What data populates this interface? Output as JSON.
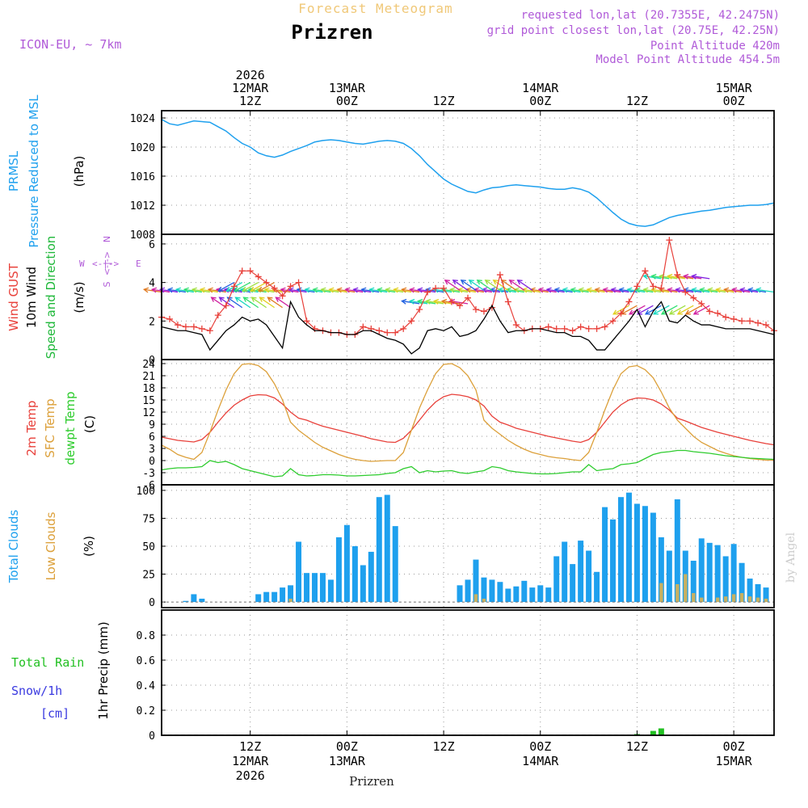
{
  "header": {
    "title": "Forecast Meteogram",
    "location": "Prizren",
    "model": "ICON-EU,  ~ 7km",
    "requested": "requested lon,lat (20.7355E, 42.2475N)",
    "gridpoint": "grid point closest lon,lat (20.75E, 42.25N)",
    "point_altitude": "Point Altitude 420m",
    "model_altitude": "Model Point Altitude 454.5m",
    "credit": "by Angel",
    "footer_location": "Prizren"
  },
  "colors": {
    "pressure": "#1ea0ee",
    "gust": "#e8403a",
    "wind": "#000000",
    "wind_dir_label": "#1fb83a",
    "t2m": "#e8403a",
    "sfc": "#dca03a",
    "dewpt": "#2ecc2e",
    "total_clouds": "#1ea0ee",
    "low_clouds": "#c8b060",
    "rain": "#22c022",
    "snow": "#3a3ae0",
    "purple": "#b05ad8",
    "title_gold": "#f0c878"
  },
  "time_axis": {
    "top": [
      {
        "t": 15,
        "lines": [
          "2026",
          "12MAR",
          "12Z"
        ]
      },
      {
        "t": 27,
        "lines": [
          "13MAR",
          "00Z"
        ]
      },
      {
        "t": 39,
        "lines": [
          "12Z"
        ]
      },
      {
        "t": 51,
        "lines": [
          "14MAR",
          "00Z"
        ]
      },
      {
        "t": 63,
        "lines": [
          "12Z"
        ]
      },
      {
        "t": 75,
        "lines": [
          "15MAR",
          "00Z"
        ]
      }
    ],
    "bottom": [
      {
        "t": 15,
        "lines": [
          "12Z",
          "12MAR",
          "2026"
        ]
      },
      {
        "t": 27,
        "lines": [
          "00Z",
          "13MAR"
        ]
      },
      {
        "t": 39,
        "lines": [
          "12Z"
        ]
      },
      {
        "t": 51,
        "lines": [
          "00Z",
          "14MAR"
        ]
      },
      {
        "t": 63,
        "lines": [
          "12Z"
        ]
      },
      {
        "t": 75,
        "lines": [
          "00Z",
          "15MAR"
        ]
      }
    ],
    "t_start": 4,
    "t_end": 80
  },
  "chart_data": [
    {
      "type": "line",
      "panel": "pressure",
      "ylabel_lines": [
        "PRMSL",
        "Pressure Reduced to MSL"
      ],
      "unit": "(hPa)",
      "ylim": [
        1008,
        1025
      ],
      "yticks": [
        1008,
        1012,
        1016,
        1020,
        1024
      ],
      "x": [
        4,
        5,
        6,
        7,
        8,
        9,
        10,
        11,
        12,
        13,
        14,
        15,
        16,
        17,
        18,
        19,
        20,
        21,
        22,
        23,
        24,
        25,
        26,
        27,
        28,
        29,
        30,
        31,
        32,
        33,
        34,
        35,
        36,
        37,
        38,
        39,
        40,
        41,
        42,
        43,
        44,
        45,
        46,
        47,
        48,
        49,
        50,
        51,
        52,
        53,
        54,
        55,
        56,
        57,
        58,
        59,
        60,
        61,
        62,
        63,
        64,
        65,
        66,
        67,
        68,
        69,
        70,
        71,
        72,
        73,
        74,
        75,
        76,
        77,
        78,
        79,
        80
      ],
      "values": [
        1023.8,
        1023.2,
        1023.0,
        1023.3,
        1023.6,
        1023.5,
        1023.4,
        1022.8,
        1022.2,
        1021.3,
        1020.5,
        1020.0,
        1019.2,
        1018.8,
        1018.6,
        1018.9,
        1019.4,
        1019.8,
        1020.2,
        1020.7,
        1020.9,
        1021.0,
        1020.9,
        1020.7,
        1020.5,
        1020.4,
        1020.6,
        1020.8,
        1020.9,
        1020.8,
        1020.5,
        1019.8,
        1018.8,
        1017.6,
        1016.6,
        1015.6,
        1014.9,
        1014.4,
        1013.9,
        1013.7,
        1014.1,
        1014.4,
        1014.5,
        1014.7,
        1014.8,
        1014.7,
        1014.6,
        1014.5,
        1014.3,
        1014.2,
        1014.2,
        1014.4,
        1014.2,
        1013.8,
        1013.0,
        1012.0,
        1011.0,
        1010.1,
        1009.5,
        1009.2,
        1009.1,
        1009.3,
        1009.8,
        1010.3,
        1010.6,
        1010.8,
        1011.0,
        1011.2,
        1011.3,
        1011.5,
        1011.7,
        1011.8,
        1011.9,
        1012.0,
        1012.0,
        1012.1,
        1012.3
      ]
    },
    {
      "type": "line",
      "panel": "wind",
      "ylabel_lines": [
        "Wind GUST",
        "10m Wind",
        "Speed and Direction"
      ],
      "unit": "(m/s)",
      "compass": {
        "n": "N",
        "s": "S",
        "w": "W",
        "e": "E",
        "arrow": "<-|->"
      },
      "ylim": [
        0,
        6.5
      ],
      "yticks": [
        0,
        2,
        4,
        6
      ],
      "x": [
        4,
        5,
        6,
        7,
        8,
        9,
        10,
        11,
        12,
        13,
        14,
        15,
        16,
        17,
        18,
        19,
        20,
        21,
        22,
        23,
        24,
        25,
        26,
        27,
        28,
        29,
        30,
        31,
        32,
        33,
        34,
        35,
        36,
        37,
        38,
        39,
        40,
        41,
        42,
        43,
        44,
        45,
        46,
        47,
        48,
        49,
        50,
        51,
        52,
        53,
        54,
        55,
        56,
        57,
        58,
        59,
        60,
        61,
        62,
        63,
        64,
        65,
        66,
        67,
        68,
        69,
        70,
        71,
        72,
        73,
        74,
        75,
        76,
        77,
        78,
        79,
        80
      ],
      "series": [
        {
          "name": "Wind GUST",
          "values": [
            2.2,
            2.1,
            1.8,
            1.7,
            1.7,
            1.6,
            1.5,
            2.3,
            2.8,
            3.8,
            4.6,
            4.6,
            4.3,
            4.0,
            3.7,
            3.3,
            3.8,
            4.0,
            2.0,
            1.6,
            1.5,
            1.4,
            1.4,
            1.3,
            1.3,
            1.7,
            1.6,
            1.5,
            1.4,
            1.4,
            1.6,
            2.0,
            2.6,
            3.5,
            3.7,
            3.7,
            3.0,
            2.8,
            3.2,
            2.6,
            2.5,
            2.7,
            4.4,
            3.0,
            1.8,
            1.5,
            1.6,
            1.6,
            1.7,
            1.6,
            1.6,
            1.5,
            1.7,
            1.6,
            1.6,
            1.7,
            2.0,
            2.4,
            3.0,
            3.8,
            4.6,
            3.8,
            3.7,
            6.2,
            4.4,
            3.5,
            3.2,
            2.9,
            2.5,
            2.4,
            2.2,
            2.1,
            2.0,
            2.0,
            1.9,
            1.8,
            1.5
          ]
        },
        {
          "name": "10m Wind",
          "values": [
            1.7,
            1.6,
            1.5,
            1.5,
            1.4,
            1.3,
            0.5,
            1.0,
            1.5,
            1.8,
            2.2,
            2.0,
            2.1,
            1.8,
            1.2,
            0.6,
            3.0,
            2.2,
            1.8,
            1.5,
            1.5,
            1.4,
            1.4,
            1.3,
            1.3,
            1.5,
            1.5,
            1.3,
            1.1,
            1.0,
            0.8,
            0.3,
            0.6,
            1.5,
            1.6,
            1.5,
            1.7,
            1.2,
            1.3,
            1.5,
            2.1,
            2.8,
            2.0,
            1.4,
            1.5,
            1.5,
            1.6,
            1.6,
            1.5,
            1.4,
            1.4,
            1.2,
            1.2,
            1.0,
            0.5,
            0.5,
            1.0,
            1.5,
            2.0,
            2.6,
            1.7,
            2.5,
            3.0,
            2.0,
            1.9,
            2.3,
            2.0,
            1.8,
            1.8,
            1.7,
            1.6,
            1.6,
            1.6,
            1.6,
            1.5,
            1.4,
            1.3
          ]
        }
      ],
      "arrow_rows": [
        {
          "level": 3.5,
          "start": 4,
          "end": 80,
          "step": 1
        },
        {
          "level": 2.7,
          "start": 12,
          "end": 20,
          "step": 1
        },
        {
          "level": 4.0,
          "start": 13,
          "end": 18,
          "step": 1
        },
        {
          "level": 2.9,
          "start": 36,
          "end": 42,
          "step": 1
        },
        {
          "level": 3.6,
          "start": 41,
          "end": 50,
          "step": 1
        },
        {
          "level": 2.8,
          "start": 62,
          "end": 72,
          "step": 1
        },
        {
          "level": 4.2,
          "start": 66,
          "end": 72,
          "step": 1
        }
      ]
    },
    {
      "type": "line",
      "panel": "temperature",
      "ylabel_lines": [
        "2m Temp",
        "SFC Temp",
        "dewpt Temp"
      ],
      "unit": "(C)",
      "ylim": [
        -6,
        25
      ],
      "yticks": [
        -6,
        -3,
        0,
        3,
        6,
        9,
        12,
        15,
        18,
        21,
        24
      ],
      "x": [
        4,
        5,
        6,
        7,
        8,
        9,
        10,
        11,
        12,
        13,
        14,
        15,
        16,
        17,
        18,
        19,
        20,
        21,
        22,
        23,
        24,
        25,
        26,
        27,
        28,
        29,
        30,
        31,
        32,
        33,
        34,
        35,
        36,
        37,
        38,
        39,
        40,
        41,
        42,
        43,
        44,
        45,
        46,
        47,
        48,
        49,
        50,
        51,
        52,
        53,
        54,
        55,
        56,
        57,
        58,
        59,
        60,
        61,
        62,
        63,
        64,
        65,
        66,
        67,
        68,
        69,
        70,
        71,
        72,
        73,
        74,
        75,
        76,
        77,
        78,
        79,
        80
      ],
      "series": [
        {
          "name": "2m Temp",
          "values": [
            5.8,
            5.4,
            5.0,
            4.8,
            4.6,
            5.2,
            7.0,
            9.5,
            11.8,
            13.7,
            15.0,
            16.0,
            16.3,
            16.2,
            15.5,
            14.0,
            12.0,
            10.5,
            10.0,
            9.2,
            8.5,
            8.0,
            7.5,
            7.0,
            6.5,
            6.0,
            5.4,
            5.0,
            4.6,
            4.5,
            5.5,
            7.5,
            10.0,
            12.5,
            14.5,
            15.8,
            16.4,
            16.2,
            15.8,
            15.0,
            13.5,
            11.0,
            9.5,
            8.8,
            8.0,
            7.5,
            7.0,
            6.5,
            6.0,
            5.6,
            5.2,
            4.8,
            4.5,
            5.2,
            7.0,
            9.5,
            12.0,
            13.8,
            15.0,
            15.5,
            15.4,
            15.0,
            14.0,
            12.5,
            10.5,
            9.8,
            9.0,
            8.2,
            7.6,
            7.0,
            6.5,
            6.0,
            5.5,
            5.0,
            4.6,
            4.2,
            3.9
          ]
        },
        {
          "name": "SFC Temp",
          "values": [
            3.8,
            2.8,
            1.5,
            0.8,
            0.3,
            2.0,
            7.0,
            12.5,
            17.5,
            21.5,
            23.8,
            24.0,
            23.5,
            22.0,
            19.0,
            15.0,
            9.5,
            7.5,
            6.0,
            4.5,
            3.3,
            2.4,
            1.5,
            0.8,
            0.3,
            0.0,
            -0.2,
            -0.1,
            0.0,
            0.0,
            2.0,
            7.5,
            13.0,
            17.5,
            21.5,
            23.8,
            24.0,
            23.0,
            21.0,
            17.5,
            10.0,
            8.0,
            6.5,
            5.0,
            3.8,
            2.8,
            2.0,
            1.5,
            1.0,
            0.7,
            0.5,
            0.2,
            0.0,
            2.0,
            7.0,
            12.5,
            17.5,
            21.5,
            23.2,
            23.5,
            22.5,
            20.5,
            17.0,
            13.0,
            10.0,
            8.0,
            6.0,
            4.5,
            3.5,
            2.5,
            1.8,
            1.2,
            0.8,
            0.5,
            0.3,
            0.1,
            0.1
          ]
        },
        {
          "name": "dewpt Temp",
          "values": [
            -2.3,
            -2.0,
            -1.8,
            -1.8,
            -1.7,
            -1.5,
            0.0,
            -0.5,
            -0.2,
            -1.0,
            -2.0,
            -2.5,
            -3.0,
            -3.5,
            -4.0,
            -3.8,
            -2.0,
            -3.5,
            -3.8,
            -3.7,
            -3.5,
            -3.5,
            -3.6,
            -3.8,
            -3.8,
            -3.7,
            -3.6,
            -3.5,
            -3.2,
            -3.0,
            -2.0,
            -1.5,
            -3.0,
            -2.5,
            -2.8,
            -2.6,
            -2.5,
            -3.0,
            -3.2,
            -2.8,
            -2.5,
            -1.5,
            -1.8,
            -2.5,
            -2.8,
            -3.0,
            -3.2,
            -3.3,
            -3.3,
            -3.2,
            -3.0,
            -2.8,
            -2.8,
            -1.0,
            -2.5,
            -2.2,
            -2.0,
            -1.0,
            -0.8,
            -0.5,
            0.5,
            1.5,
            2.0,
            2.2,
            2.5,
            2.5,
            2.2,
            2.0,
            1.8,
            1.5,
            1.2,
            1.0,
            0.8,
            0.6,
            0.5,
            0.4,
            0.3
          ]
        }
      ]
    },
    {
      "type": "bar",
      "panel": "clouds",
      "ylabel_lines": [
        "Total Clouds",
        "Low Clouds"
      ],
      "unit": "(%)",
      "ylim": [
        -5,
        105
      ],
      "yticks": [
        0,
        25,
        50,
        75,
        100
      ],
      "x": [
        5,
        6,
        7,
        8,
        9,
        10,
        11,
        12,
        13,
        14,
        15,
        16,
        17,
        18,
        19,
        20,
        21,
        22,
        23,
        24,
        25,
        26,
        27,
        28,
        29,
        30,
        31,
        32,
        33,
        34,
        35,
        36,
        37,
        38,
        39,
        40,
        41,
        42,
        43,
        44,
        45,
        46,
        47,
        48,
        49,
        50,
        51,
        52,
        53,
        54,
        55,
        56,
        57,
        58,
        59,
        60,
        61,
        62,
        63,
        64,
        65,
        66,
        67,
        68,
        69,
        70,
        71,
        72,
        73,
        74,
        75,
        76,
        77,
        78,
        79
      ],
      "series": [
        {
          "name": "Total Clouds",
          "values": [
            0,
            0,
            1,
            7,
            3,
            0,
            0,
            0,
            0,
            0,
            0,
            7,
            9,
            9,
            13,
            15,
            54,
            26,
            26,
            26,
            20,
            58,
            69,
            50,
            33,
            45,
            94,
            96,
            68,
            0,
            0,
            0,
            0,
            0,
            0,
            0,
            15,
            20,
            38,
            22,
            20,
            18,
            12,
            14,
            19,
            13,
            15,
            13,
            41,
            54,
            34,
            55,
            46,
            27,
            85,
            74,
            94,
            98,
            88,
            86,
            80,
            58,
            46,
            92,
            46,
            37,
            57,
            53,
            51,
            41,
            52,
            35,
            21,
            16,
            13
          ]
        },
        {
          "name": "Low Clouds",
          "values": [
            0,
            0,
            0,
            0,
            0,
            0,
            0,
            0,
            0,
            0,
            0,
            0,
            0,
            0,
            0,
            3,
            0,
            0,
            0,
            0,
            0,
            0,
            0,
            0,
            0,
            0,
            0,
            0,
            0,
            0,
            0,
            0,
            0,
            0,
            0,
            0,
            0,
            0,
            7,
            3,
            0,
            0,
            0,
            0,
            0,
            0,
            0,
            0,
            0,
            0,
            0,
            0,
            0,
            0,
            0,
            0,
            0,
            0,
            0,
            0,
            0,
            17,
            0,
            16,
            25,
            8,
            4,
            0,
            4,
            5,
            7,
            8,
            5,
            4,
            3
          ]
        }
      ]
    },
    {
      "type": "bar",
      "panel": "precip",
      "ylabel_lines": [
        "Total   Rain",
        "Snow/1h",
        "[cm]"
      ],
      "unit": "1hr Precip (mm)",
      "ylim": [
        0,
        1.0
      ],
      "yticks": [
        0,
        0.2,
        0.4,
        0.6,
        0.8
      ],
      "x": [
        63,
        64,
        65,
        66
      ],
      "values": [
        0.01,
        0.0,
        0.035,
        0.055
      ]
    }
  ]
}
